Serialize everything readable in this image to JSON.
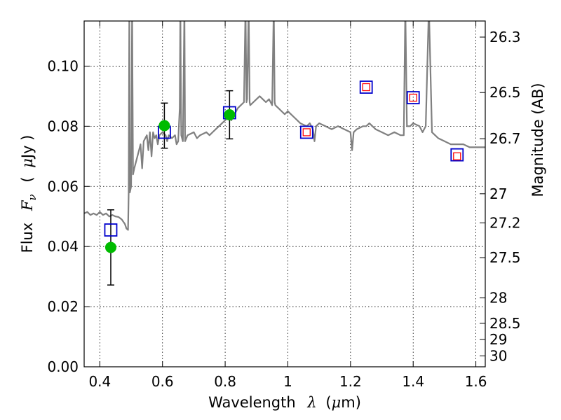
{
  "chart_data": {
    "type": "line",
    "title": "",
    "xlabel": {
      "prefix": "Wavelength",
      "symbol": "λ",
      "unit_open": "(",
      "unit_mu": "μ",
      "unit_rest": "m)"
    },
    "ylabel": {
      "prefix": "Flux",
      "symbol": "F",
      "subscript": "ν",
      "unit_open": "(",
      "unit_mu": "μ",
      "unit_rest": "Jy )"
    },
    "y2label": "Magnitude (AB)",
    "xlim": [
      0.35,
      1.63
    ],
    "ylim": [
      0.0,
      0.115
    ],
    "grid": true,
    "x_ticks": [
      {
        "value": 0.4,
        "label": "0.4"
      },
      {
        "value": 0.6,
        "label": "0.6"
      },
      {
        "value": 0.8,
        "label": "0.8"
      },
      {
        "value": 1.0,
        "label": "1"
      },
      {
        "value": 1.2,
        "label": "1.2"
      },
      {
        "value": 1.4,
        "label": "1.4"
      },
      {
        "value": 1.6,
        "label": "1.6"
      }
    ],
    "y_ticks": [
      {
        "value": 0.0,
        "label": "0.00"
      },
      {
        "value": 0.02,
        "label": "0.02"
      },
      {
        "value": 0.04,
        "label": "0.04"
      },
      {
        "value": 0.06,
        "label": "0.06"
      },
      {
        "value": 0.08,
        "label": "0.08"
      },
      {
        "value": 0.1,
        "label": "0.10"
      }
    ],
    "magnitude_ticks": [
      {
        "mag": 26.3,
        "label": "26.3"
      },
      {
        "mag": 26.5,
        "label": "26.5"
      },
      {
        "mag": 26.7,
        "label": "26.7"
      },
      {
        "mag": 27.0,
        "label": "27"
      },
      {
        "mag": 27.2,
        "label": "27.2"
      },
      {
        "mag": 27.5,
        "label": "27.5"
      },
      {
        "mag": 28.0,
        "label": "28"
      },
      {
        "mag": 28.5,
        "label": "28.5"
      },
      {
        "mag": 29.0,
        "label": "29"
      },
      {
        "mag": 30.0,
        "label": "30"
      }
    ],
    "series": [
      {
        "name": "model_spectrum",
        "color": "#808080",
        "points": [
          [
            0.35,
            0.051
          ],
          [
            0.36,
            0.0515
          ],
          [
            0.37,
            0.0505
          ],
          [
            0.38,
            0.051
          ],
          [
            0.39,
            0.0505
          ],
          [
            0.4,
            0.0515
          ],
          [
            0.41,
            0.0505
          ],
          [
            0.42,
            0.051
          ],
          [
            0.43,
            0.05
          ],
          [
            0.44,
            0.0505
          ],
          [
            0.45,
            0.05
          ],
          [
            0.46,
            0.0498
          ],
          [
            0.47,
            0.049
          ],
          [
            0.48,
            0.0475
          ],
          [
            0.485,
            0.046
          ],
          [
            0.49,
            0.0455
          ],
          [
            0.492,
            0.058
          ],
          [
            0.494,
            0.12
          ],
          [
            0.496,
            0.058
          ],
          [
            0.5,
            0.06
          ],
          [
            0.503,
            0.12
          ],
          [
            0.506,
            0.064
          ],
          [
            0.51,
            0.066
          ],
          [
            0.52,
            0.07
          ],
          [
            0.53,
            0.074
          ],
          [
            0.535,
            0.066
          ],
          [
            0.54,
            0.075
          ],
          [
            0.55,
            0.077
          ],
          [
            0.555,
            0.072
          ],
          [
            0.56,
            0.078
          ],
          [
            0.565,
            0.07
          ],
          [
            0.57,
            0.078
          ],
          [
            0.575,
            0.076
          ],
          [
            0.58,
            0.077
          ],
          [
            0.585,
            0.074
          ],
          [
            0.59,
            0.077
          ],
          [
            0.6,
            0.078
          ],
          [
            0.61,
            0.077
          ],
          [
            0.615,
            0.075
          ],
          [
            0.62,
            0.077
          ],
          [
            0.63,
            0.076
          ],
          [
            0.64,
            0.077
          ],
          [
            0.645,
            0.074
          ],
          [
            0.65,
            0.075
          ],
          [
            0.655,
            0.086
          ],
          [
            0.657,
            0.12
          ],
          [
            0.659,
            0.086
          ],
          [
            0.66,
            0.077
          ],
          [
            0.665,
            0.075
          ],
          [
            0.67,
            0.12
          ],
          [
            0.672,
            0.075
          ],
          [
            0.68,
            0.077
          ],
          [
            0.7,
            0.078
          ],
          [
            0.71,
            0.076
          ],
          [
            0.72,
            0.077
          ],
          [
            0.74,
            0.078
          ],
          [
            0.75,
            0.077
          ],
          [
            0.76,
            0.078
          ],
          [
            0.77,
            0.079
          ],
          [
            0.78,
            0.08
          ],
          [
            0.79,
            0.081
          ],
          [
            0.8,
            0.082
          ],
          [
            0.81,
            0.083
          ],
          [
            0.82,
            0.082
          ],
          [
            0.83,
            0.084
          ],
          [
            0.84,
            0.086
          ],
          [
            0.85,
            0.087
          ],
          [
            0.86,
            0.088
          ],
          [
            0.865,
            0.12
          ],
          [
            0.868,
            0.088
          ],
          [
            0.87,
            0.089
          ],
          [
            0.875,
            0.12
          ],
          [
            0.878,
            0.088
          ],
          [
            0.88,
            0.087
          ],
          [
            0.89,
            0.088
          ],
          [
            0.9,
            0.089
          ],
          [
            0.91,
            0.09
          ],
          [
            0.92,
            0.089
          ],
          [
            0.93,
            0.088
          ],
          [
            0.94,
            0.089
          ],
          [
            0.95,
            0.087
          ],
          [
            0.955,
            0.12
          ],
          [
            0.958,
            0.088
          ],
          [
            0.96,
            0.087
          ],
          [
            0.97,
            0.086
          ],
          [
            0.98,
            0.085
          ],
          [
            0.99,
            0.084
          ],
          [
            1.0,
            0.085
          ],
          [
            1.01,
            0.084
          ],
          [
            1.02,
            0.083
          ],
          [
            1.04,
            0.081
          ],
          [
            1.06,
            0.08
          ],
          [
            1.07,
            0.081
          ],
          [
            1.08,
            0.079
          ],
          [
            1.085,
            0.075
          ],
          [
            1.09,
            0.08
          ],
          [
            1.1,
            0.081
          ],
          [
            1.12,
            0.08
          ],
          [
            1.14,
            0.079
          ],
          [
            1.16,
            0.08
          ],
          [
            1.18,
            0.079
          ],
          [
            1.2,
            0.078
          ],
          [
            1.205,
            0.072
          ],
          [
            1.21,
            0.078
          ],
          [
            1.22,
            0.079
          ],
          [
            1.24,
            0.08
          ],
          [
            1.25,
            0.08
          ],
          [
            1.26,
            0.081
          ],
          [
            1.28,
            0.079
          ],
          [
            1.3,
            0.078
          ],
          [
            1.32,
            0.077
          ],
          [
            1.34,
            0.078
          ],
          [
            1.36,
            0.077
          ],
          [
            1.37,
            0.077
          ],
          [
            1.375,
            0.12
          ],
          [
            1.38,
            0.08
          ],
          [
            1.39,
            0.08
          ],
          [
            1.4,
            0.081
          ],
          [
            1.42,
            0.08
          ],
          [
            1.43,
            0.078
          ],
          [
            1.44,
            0.08
          ],
          [
            1.45,
            0.12
          ],
          [
            1.46,
            0.078
          ],
          [
            1.47,
            0.077
          ],
          [
            1.48,
            0.076
          ],
          [
            1.5,
            0.075
          ],
          [
            1.52,
            0.074
          ],
          [
            1.54,
            0.074
          ],
          [
            1.56,
            0.074
          ],
          [
            1.58,
            0.073
          ],
          [
            1.6,
            0.073
          ],
          [
            1.63,
            0.073
          ]
        ]
      }
    ],
    "observed_points": {
      "name": "observed",
      "color": "#00bb00",
      "points": [
        {
          "x": 0.435,
          "y": 0.0397,
          "yerr": 0.0125
        },
        {
          "x": 0.606,
          "y": 0.0802,
          "yerr": 0.0075
        },
        {
          "x": 0.814,
          "y": 0.0838,
          "yerr": 0.008
        }
      ]
    },
    "model_band_boxes": {
      "name": "model_photometry",
      "color": "#0000cc",
      "points": [
        {
          "x": 0.435,
          "y": 0.0455
        },
        {
          "x": 0.606,
          "y": 0.078
        },
        {
          "x": 0.814,
          "y": 0.0845
        },
        {
          "x": 1.06,
          "y": 0.078
        },
        {
          "x": 1.25,
          "y": 0.093
        },
        {
          "x": 1.4,
          "y": 0.0895
        },
        {
          "x": 1.54,
          "y": 0.0705
        }
      ]
    },
    "model_red_boxes": {
      "name": "model_photometry_ir",
      "color": "#ff0000",
      "points": [
        {
          "x": 1.06,
          "y": 0.078
        },
        {
          "x": 1.25,
          "y": 0.093
        },
        {
          "x": 1.4,
          "y": 0.0895
        },
        {
          "x": 1.54,
          "y": 0.07
        }
      ]
    }
  }
}
